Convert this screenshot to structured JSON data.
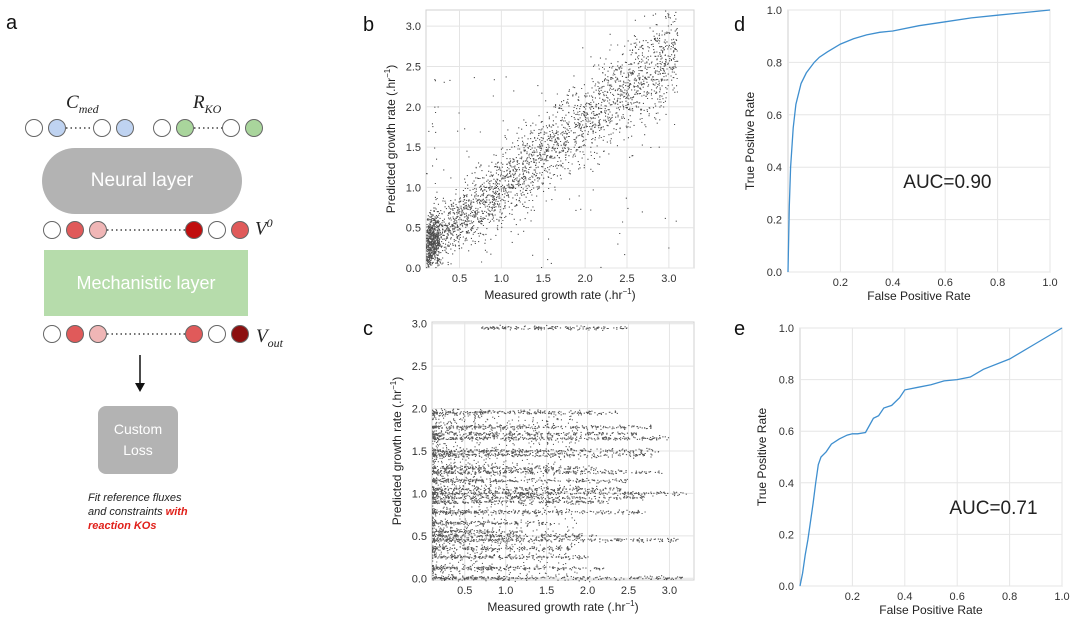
{
  "panels": {
    "a": "a",
    "b": "b",
    "c": "c",
    "d": "d",
    "e": "e"
  },
  "schematic": {
    "input_label_1": {
      "base": "C",
      "sub": "med"
    },
    "input_label_2": {
      "base": "R",
      "sub": "KO"
    },
    "neural_layer": "Neural layer",
    "v0_label": {
      "base": "V",
      "sup": "0"
    },
    "mechanistic_layer": "Mechanistic layer",
    "vout_label": {
      "base": "V",
      "sub": "out"
    },
    "loss_line1": "Custom",
    "loss_line2": "Loss",
    "caption_line1": "Fit reference fluxes",
    "caption_line2_a": "and constraints ",
    "caption_line2_b": "with",
    "caption_line3": "reaction KOs",
    "colors": {
      "blue": "#bfd3f1",
      "green": "#a9d59c",
      "pink": "#f0b6b6",
      "red": "#e05a5a",
      "darkred": "#c10e0e",
      "maroon": "#8c1010",
      "grey": "#b3b3b3",
      "mech": "#b6dcab"
    }
  },
  "chart_data": [
    {
      "id": "b",
      "type": "scatter",
      "xlabel": "Measured growth rate (.hr",
      "xlabel_sup": "−1",
      "xlabel_tail": ")",
      "ylabel": "Predicted growth rate (.hr",
      "ylabel_sup": "−1",
      "ylabel_tail": ")",
      "xlim": [
        0.1,
        3.3
      ],
      "ylim": [
        0.0,
        3.2
      ],
      "xticks": [
        "0.5",
        "1.0",
        "1.5",
        "2.0",
        "2.5",
        "3.0"
      ],
      "yticks": [
        "0.0",
        "0.5",
        "1.0",
        "1.5",
        "2.0",
        "2.5",
        "3.0"
      ],
      "trend": {
        "slope": 0.82,
        "intercept": 0.18,
        "spread": 0.22
      }
    },
    {
      "id": "c",
      "type": "scatter",
      "xlabel": "Measured growth rate (.hr",
      "xlabel_sup": "−1",
      "xlabel_tail": ")",
      "ylabel": "Predicted growth rate (.hr",
      "ylabel_sup": "−1",
      "ylabel_tail": ")",
      "xlim": [
        0.1,
        3.3
      ],
      "ylim": [
        -0.02,
        3.02
      ],
      "xticks": [
        "0.5",
        "1.0",
        "1.5",
        "2.0",
        "2.5",
        "3.0"
      ],
      "yticks": [
        "0.0",
        "0.5",
        "1.0",
        "1.5",
        "2.0",
        "2.5",
        "3.0"
      ],
      "bands": [
        {
          "y": 0.0,
          "x0": 0.1,
          "x1": 3.2
        },
        {
          "y": 0.12,
          "x0": 0.1,
          "x1": 2.2
        },
        {
          "y": 0.25,
          "x0": 0.1,
          "x1": 2.0
        },
        {
          "y": 0.35,
          "x0": 0.1,
          "x1": 1.8
        },
        {
          "y": 0.45,
          "x0": 0.1,
          "x1": 3.1
        },
        {
          "y": 0.5,
          "x0": 0.1,
          "x1": 2.1
        },
        {
          "y": 0.55,
          "x0": 0.1,
          "x1": 1.2
        },
        {
          "y": 0.65,
          "x0": 0.1,
          "x1": 1.6
        },
        {
          "y": 0.78,
          "x0": 0.1,
          "x1": 2.7
        },
        {
          "y": 0.9,
          "x0": 0.1,
          "x1": 2.3
        },
        {
          "y": 0.95,
          "x0": 0.1,
          "x1": 2.7
        },
        {
          "y": 1.0,
          "x0": 0.1,
          "x1": 3.2
        },
        {
          "y": 1.05,
          "x0": 0.1,
          "x1": 2.4
        },
        {
          "y": 1.15,
          "x0": 0.1,
          "x1": 2.5
        },
        {
          "y": 1.25,
          "x0": 0.1,
          "x1": 2.9
        },
        {
          "y": 1.3,
          "x0": 0.1,
          "x1": 2.1
        },
        {
          "y": 1.45,
          "x0": 0.1,
          "x1": 2.8
        },
        {
          "y": 1.5,
          "x0": 0.1,
          "x1": 2.9
        },
        {
          "y": 1.65,
          "x0": 0.1,
          "x1": 3.0
        },
        {
          "y": 1.7,
          "x0": 0.1,
          "x1": 2.6
        },
        {
          "y": 1.78,
          "x0": 0.1,
          "x1": 2.8
        },
        {
          "y": 1.95,
          "x0": 0.1,
          "x1": 2.4
        },
        {
          "y": 2.95,
          "x0": 0.7,
          "x1": 2.5
        }
      ]
    },
    {
      "id": "d",
      "type": "line",
      "xlabel": "False Positive Rate",
      "ylabel": "True Positive Rate",
      "xlim": [
        0,
        1
      ],
      "ylim": [
        0,
        1
      ],
      "xticks": [
        "0.2",
        "0.4",
        "0.6",
        "0.8",
        "1.0"
      ],
      "yticks": [
        "0.0",
        "0.2",
        "0.4",
        "0.6",
        "0.8",
        "1.0"
      ],
      "annotation": "AUC=0.90",
      "x": [
        0,
        0.005,
        0.01,
        0.02,
        0.03,
        0.05,
        0.07,
        0.1,
        0.12,
        0.15,
        0.2,
        0.25,
        0.3,
        0.35,
        0.4,
        0.5,
        0.6,
        0.7,
        0.8,
        0.9,
        1.0
      ],
      "y": [
        0,
        0.25,
        0.4,
        0.55,
        0.64,
        0.72,
        0.76,
        0.8,
        0.82,
        0.84,
        0.87,
        0.89,
        0.905,
        0.915,
        0.92,
        0.94,
        0.955,
        0.97,
        0.98,
        0.99,
        1.0
      ]
    },
    {
      "id": "e",
      "type": "line",
      "xlabel": "False Positive Rate",
      "ylabel": "True Positive Rate",
      "xlim": [
        0,
        1
      ],
      "ylim": [
        0,
        1
      ],
      "xticks": [
        "0.2",
        "0.4",
        "0.6",
        "0.8",
        "1.0"
      ],
      "yticks": [
        "0.0",
        "0.2",
        "0.4",
        "0.6",
        "0.8",
        "1.0"
      ],
      "annotation": "AUC=0.71",
      "x": [
        0,
        0.01,
        0.02,
        0.03,
        0.04,
        0.05,
        0.06,
        0.07,
        0.08,
        0.1,
        0.12,
        0.15,
        0.18,
        0.2,
        0.22,
        0.25,
        0.28,
        0.3,
        0.32,
        0.35,
        0.38,
        0.4,
        0.45,
        0.5,
        0.55,
        0.6,
        0.65,
        0.7,
        0.8,
        0.9,
        1.0
      ],
      "y": [
        0,
        0.05,
        0.12,
        0.18,
        0.25,
        0.32,
        0.4,
        0.47,
        0.5,
        0.52,
        0.55,
        0.57,
        0.585,
        0.59,
        0.59,
        0.595,
        0.65,
        0.66,
        0.69,
        0.7,
        0.73,
        0.76,
        0.77,
        0.78,
        0.795,
        0.8,
        0.81,
        0.84,
        0.88,
        0.94,
        1.0
      ]
    }
  ]
}
